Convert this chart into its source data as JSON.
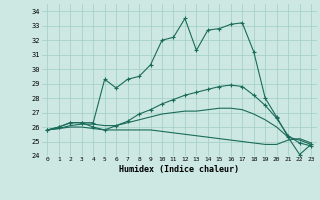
{
  "xlabel": "Humidex (Indice chaleur)",
  "xlim": [
    -0.5,
    23.5
  ],
  "ylim": [
    24,
    34.5
  ],
  "yticks": [
    24,
    25,
    26,
    27,
    28,
    29,
    30,
    31,
    32,
    33,
    34
  ],
  "xticks": [
    0,
    1,
    2,
    3,
    4,
    5,
    6,
    7,
    8,
    9,
    10,
    11,
    12,
    13,
    14,
    15,
    16,
    17,
    18,
    19,
    20,
    21,
    22,
    23
  ],
  "bg_color": "#cde8e2",
  "grid_color": "#9ecdc4",
  "line_color": "#1a6b5a",
  "line1": [
    25.8,
    26.0,
    26.3,
    26.3,
    26.3,
    29.3,
    28.7,
    29.3,
    29.5,
    30.3,
    32.0,
    32.2,
    33.5,
    31.3,
    32.7,
    32.8,
    33.1,
    33.2,
    31.2,
    28.0,
    26.7,
    25.3,
    24.1,
    24.8
  ],
  "line2": [
    25.8,
    26.0,
    26.3,
    26.3,
    26.0,
    25.8,
    26.1,
    26.4,
    26.9,
    27.2,
    27.6,
    27.9,
    28.2,
    28.4,
    28.6,
    28.8,
    28.9,
    28.8,
    28.2,
    27.5,
    26.6,
    25.4,
    24.9,
    24.7
  ],
  "line3": [
    25.8,
    25.9,
    26.1,
    26.2,
    26.2,
    26.1,
    26.1,
    26.3,
    26.5,
    26.7,
    26.9,
    27.0,
    27.1,
    27.1,
    27.2,
    27.3,
    27.3,
    27.2,
    26.9,
    26.5,
    26.0,
    25.3,
    25.1,
    24.8
  ],
  "line4": [
    25.8,
    25.9,
    26.0,
    26.0,
    25.9,
    25.8,
    25.8,
    25.8,
    25.8,
    25.8,
    25.7,
    25.6,
    25.5,
    25.4,
    25.3,
    25.2,
    25.1,
    25.0,
    24.9,
    24.8,
    24.8,
    25.1,
    25.2,
    24.9
  ]
}
